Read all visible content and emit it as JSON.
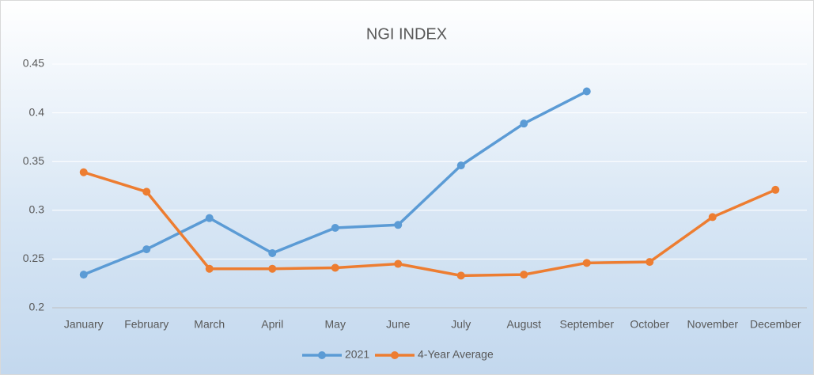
{
  "chart_data": {
    "type": "line",
    "title": "NGI INDEX",
    "categories": [
      "January",
      "February",
      "March",
      "April",
      "May",
      "June",
      "July",
      "August",
      "September",
      "October",
      "November",
      "December"
    ],
    "series": [
      {
        "name": "2021",
        "color": "#5b9bd5",
        "values": [
          0.234,
          0.26,
          0.292,
          0.256,
          0.282,
          0.285,
          0.346,
          0.389,
          0.422,
          null,
          null,
          null
        ]
      },
      {
        "name": "4-Year Average",
        "color": "#ed7d31",
        "values": [
          0.339,
          0.319,
          0.24,
          0.24,
          0.241,
          0.245,
          0.233,
          0.234,
          0.246,
          0.247,
          0.293,
          0.321
        ]
      }
    ],
    "ylim": [
      0.2,
      0.45
    ],
    "yticks": [
      0.2,
      0.25,
      0.3,
      0.35,
      0.4,
      0.45
    ],
    "grid": true,
    "legend": "bottom"
  }
}
